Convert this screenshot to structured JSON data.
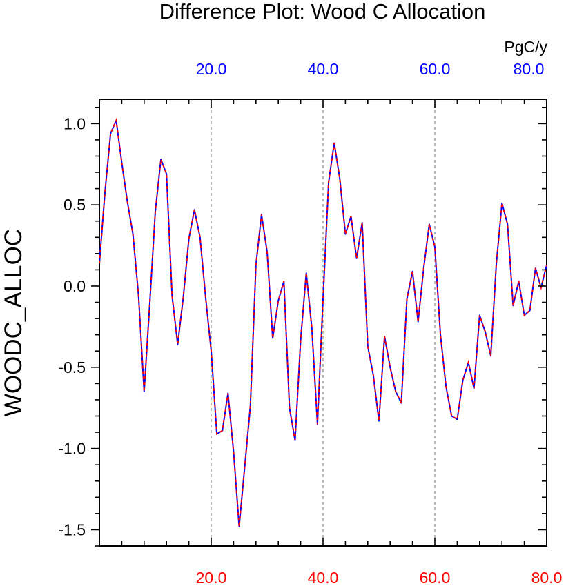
{
  "chart_data": {
    "type": "line",
    "title": "Difference Plot: Wood C Allocation",
    "ylabel": "WOODC_ALLOC",
    "top_axis_units": "PgC/y",
    "xlim": [
      0,
      80
    ],
    "ylim": [
      -1.6,
      1.15
    ],
    "x_ticks": [
      20,
      40,
      60,
      80
    ],
    "x_tick_labels": [
      "20.0",
      "40.0",
      "60.0",
      "80.0"
    ],
    "y_ticks": [
      1.0,
      0.5,
      0.0,
      -0.5,
      -1.0,
      -1.5
    ],
    "y_tick_labels": [
      "1.0",
      "0.5",
      "0.0",
      "-0.5",
      "-1.0",
      "-1.5"
    ],
    "vertical_gridlines": [
      20,
      40,
      60
    ],
    "colors": {
      "bottom_tick_labels": "#ff0000",
      "top_tick_labels": "#0000ff",
      "line_solid": "#0000ff",
      "line_dashed": "#ff0000",
      "grid": "#888888"
    },
    "series": [
      {
        "x": [
          0,
          1,
          2,
          3,
          4,
          5,
          6,
          7,
          8,
          9,
          10,
          11,
          12,
          13,
          14,
          15,
          16,
          17,
          18,
          19,
          20,
          21,
          22,
          23,
          24,
          25,
          26,
          27,
          28,
          29,
          30,
          31,
          32,
          33,
          34,
          35,
          36,
          37,
          38,
          39,
          40,
          41,
          42,
          43,
          44,
          45,
          46,
          47,
          48,
          49,
          50,
          51,
          52,
          53,
          54,
          55,
          56,
          57,
          58,
          59,
          60,
          61,
          62,
          63,
          64,
          65,
          66,
          67,
          68,
          69,
          70,
          71,
          72,
          73,
          74,
          75,
          76,
          77,
          78,
          79,
          80
        ],
        "values": [
          0.14,
          0.58,
          0.94,
          1.02,
          0.76,
          0.52,
          0.32,
          -0.06,
          -0.65,
          -0.11,
          0.46,
          0.78,
          0.69,
          -0.06,
          -0.36,
          -0.07,
          0.29,
          0.47,
          0.3,
          -0.07,
          -0.4,
          -0.91,
          -0.89,
          -0.66,
          -1.02,
          -1.48,
          -1.11,
          -0.74,
          0.13,
          0.44,
          0.21,
          -0.32,
          -0.09,
          0.03,
          -0.75,
          -0.95,
          -0.33,
          0.08,
          -0.26,
          -0.85,
          -0.08,
          0.64,
          0.88,
          0.66,
          0.32,
          0.43,
          0.17,
          0.39,
          -0.37,
          -0.55,
          -0.83,
          -0.31,
          -0.5,
          -0.65,
          -0.72,
          -0.08,
          0.09,
          -0.22,
          0.11,
          0.38,
          0.24,
          -0.3,
          -0.62,
          -0.8,
          -0.82,
          -0.58,
          -0.47,
          -0.63,
          -0.18,
          -0.28,
          -0.43,
          0.14,
          0.51,
          0.38,
          -0.12,
          0.03,
          -0.18,
          -0.15,
          0.11,
          -0.01,
          0.13
        ]
      }
    ]
  }
}
